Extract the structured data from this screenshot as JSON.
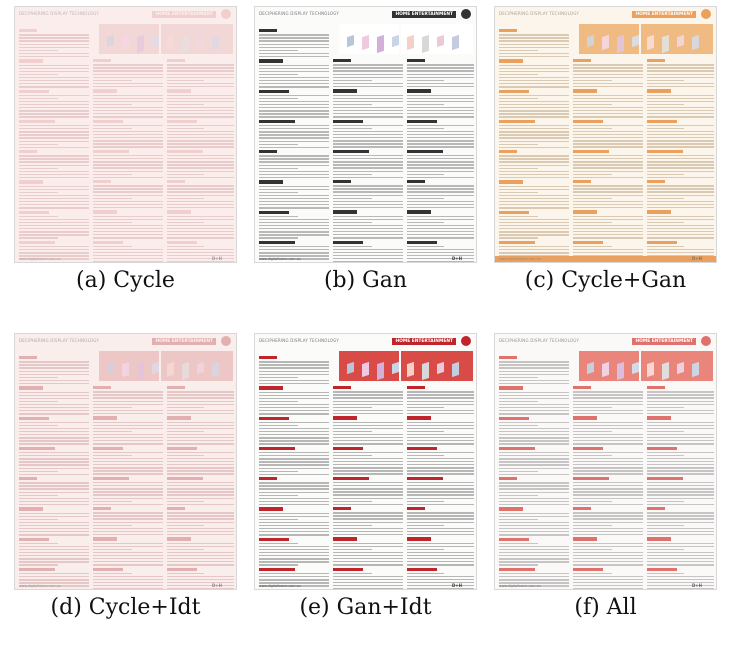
{
  "page_header_left": "DECIPHERING DISPLAY TECHNOLOGY",
  "page_header_right": "HOME ENTERTAINMENT",
  "footer_url": "www.digitalhome.com.au",
  "footer_logo": "D+H",
  "panels": [
    {
      "caption": "(a) Cycle",
      "accent": "#e9b9b9",
      "text": "#d6b2b2",
      "banner": "#e8c9c9",
      "tint": "rgba(250,225,225,0.55)"
    },
    {
      "caption": "(b) Gan",
      "accent": "#333333",
      "text": "#b8b8b8",
      "banner": "#ffffff",
      "tint": "rgba(255,255,255,0)"
    },
    {
      "caption": "(c) Cycle+Gan",
      "accent": "#e07a1f",
      "text": "#c7b9a5",
      "banner": "#e9a15a",
      "tint": "rgba(255,236,210,0.35)"
    },
    {
      "caption": "(d) Cycle+Idt",
      "accent": "#d08a8a",
      "text": "#d5b5b5",
      "banner": "#e3b2b2",
      "tint": "rgba(248,222,222,0.45)"
    },
    {
      "caption": "(e) Gan+Idt",
      "accent": "#c0252b",
      "text": "#b7b7b7",
      "banner": "#d84b46",
      "tint": "rgba(255,255,255,0)"
    },
    {
      "caption": "(f) All",
      "accent": "#d7524a",
      "text": "#b8b8b8",
      "banner": "#e56a5e",
      "tint": "rgba(255,245,245,0.2)"
    }
  ]
}
